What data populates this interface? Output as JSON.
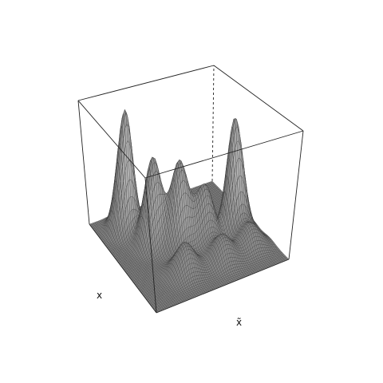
{
  "chart_data": {
    "type": "surface",
    "title": "",
    "xlabel": "x",
    "ylabel": "x̃",
    "zlabel": "",
    "colors": {
      "surface_fill": "#7a7a7a",
      "mesh_line": "#2e2e2e",
      "box": "#222222",
      "background": "#ffffff"
    },
    "description_peaks": [
      {
        "x": 0.16,
        "y": 0.2,
        "height": 1.0,
        "width": 0.055
      },
      {
        "x": 0.38,
        "y": 0.3,
        "height": 0.72,
        "width": 0.06
      },
      {
        "x": 0.5,
        "y": 0.44,
        "height": 0.68,
        "width": 0.06
      },
      {
        "x": 0.55,
        "y": 0.62,
        "height": 0.4,
        "width": 0.06
      },
      {
        "x": 0.55,
        "y": 0.85,
        "height": 0.95,
        "width": 0.055
      },
      {
        "x": 0.3,
        "y": 0.55,
        "height": 0.2,
        "width": 0.07
      },
      {
        "x": 0.75,
        "y": 0.35,
        "height": 0.25,
        "width": 0.07
      },
      {
        "x": 0.78,
        "y": 0.62,
        "height": 0.22,
        "width": 0.07
      },
      {
        "x": 0.75,
        "y": 0.85,
        "height": 0.2,
        "width": 0.07
      },
      {
        "x": 0.55,
        "y": 0.55,
        "height": 0.12,
        "width": 0.08
      }
    ],
    "grid": false,
    "box": true
  }
}
